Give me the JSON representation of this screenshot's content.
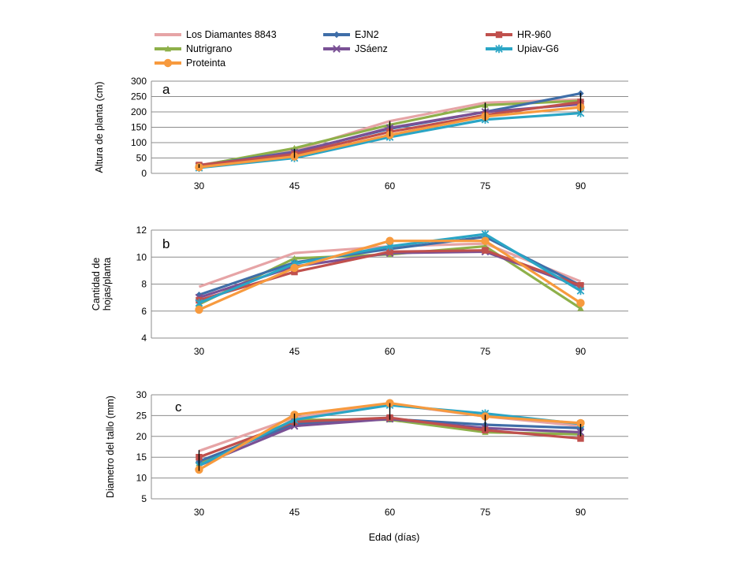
{
  "chart_data": {
    "type": "line",
    "xlabel": "Edad (días)",
    "categories": [
      "30",
      "45",
      "60",
      "75",
      "90"
    ],
    "legend": [
      {
        "name": "Los Diamantes 8843",
        "color": "#e6a4a6",
        "marker": "none"
      },
      {
        "name": "EJN2",
        "color": "#3f6ea8",
        "marker": "diamond"
      },
      {
        "name": "HR-960",
        "color": "#c0504d",
        "marker": "square"
      },
      {
        "name": "Nutrigrano",
        "color": "#8eb04a",
        "marker": "triangle"
      },
      {
        "name": "JSáenz",
        "color": "#7a5195",
        "marker": "x"
      },
      {
        "name": "Upiav-G6",
        "color": "#2aa5c5",
        "marker": "star"
      },
      {
        "name": "Proteinta",
        "color": "#f79a3e",
        "marker": "circle"
      }
    ],
    "panels": [
      {
        "tag": "a",
        "ylabel": "Altura de planta (cm)",
        "ylim": [
          0,
          300
        ],
        "yticks": [
          0,
          50,
          100,
          150,
          200,
          250,
          300
        ],
        "series": [
          {
            "name": "Los Diamantes 8843",
            "values": [
              27,
              75,
              170,
              230,
              240
            ]
          },
          {
            "name": "EJN2",
            "values": [
              25,
              70,
              145,
              200,
              260
            ]
          },
          {
            "name": "HR-960",
            "values": [
              27,
              62,
              135,
              190,
              232
            ]
          },
          {
            "name": "Nutrigrano",
            "values": [
              25,
              82,
              158,
              222,
              236
            ]
          },
          {
            "name": "JSáenz",
            "values": [
              24,
              68,
              148,
              200,
              225
            ]
          },
          {
            "name": "Upiav-G6",
            "values": [
              18,
              50,
              118,
              175,
              196
            ]
          },
          {
            "name": "Proteinta",
            "values": [
              20,
              55,
              125,
              185,
              215
            ]
          }
        ],
        "errors_at": [
          0,
          1,
          2,
          3,
          4
        ],
        "errors_center": [
          24,
          65,
          145,
          200,
          230
        ],
        "errors_half": [
          6,
          15,
          25,
          30,
          32
        ]
      },
      {
        "tag": "b",
        "ylabel_lines": [
          "Cantidad de",
          "hojas/planta"
        ],
        "ylim": [
          4,
          12
        ],
        "yticks": [
          4,
          6,
          8,
          10,
          12
        ],
        "series": [
          {
            "name": "Los Diamantes 8843",
            "values": [
              7.8,
              10.3,
              10.8,
              11.0,
              8.2
            ]
          },
          {
            "name": "EJN2",
            "values": [
              7.2,
              9.6,
              10.6,
              11.5,
              7.9
            ]
          },
          {
            "name": "HR-960",
            "values": [
              6.8,
              8.9,
              10.4,
              10.5,
              7.9
            ]
          },
          {
            "name": "Nutrigrano",
            "values": [
              6.5,
              9.9,
              10.2,
              10.8,
              6.2
            ]
          },
          {
            "name": "JSáenz",
            "values": [
              7.0,
              9.3,
              10.3,
              10.4,
              7.8
            ]
          },
          {
            "name": "Upiav-G6",
            "values": [
              6.6,
              9.5,
              10.8,
              11.7,
              7.5
            ]
          },
          {
            "name": "Proteinta",
            "values": [
              6.1,
              9.2,
              11.2,
              11.2,
              6.6
            ]
          }
        ]
      },
      {
        "tag": "c",
        "ylabel": "Diametro del tallo (mm)",
        "ylim": [
          5,
          30
        ],
        "yticks": [
          5,
          10,
          15,
          20,
          25,
          30
        ],
        "series": [
          {
            "name": "Los Diamantes 8843",
            "values": [
              16.5,
              24.5,
              27.8,
              24.8,
              22.5
            ]
          },
          {
            "name": "EJN2",
            "values": [
              14.0,
              23.0,
              24.2,
              22.8,
              22.0
            ]
          },
          {
            "name": "HR-960",
            "values": [
              15.0,
              23.5,
              24.5,
              21.5,
              19.5
            ]
          },
          {
            "name": "Nutrigrano",
            "values": [
              13.5,
              24.0,
              24.0,
              21.0,
              20.5
            ]
          },
          {
            "name": "JSáenz",
            "values": [
              13.0,
              22.5,
              24.2,
              22.0,
              21.0
            ]
          },
          {
            "name": "Upiav-G6",
            "values": [
              13.0,
              24.0,
              27.5,
              25.5,
              23.0
            ]
          },
          {
            "name": "Proteinta",
            "values": [
              12.0,
              25.2,
              28.0,
              24.8,
              23.2
            ]
          }
        ],
        "errors_at": [
          0,
          1,
          2,
          3,
          4
        ],
        "errors_center": [
          14.2,
          24.0,
          26.0,
          23.2,
          21.5
        ],
        "errors_half": [
          2.5,
          1.5,
          2.0,
          2.0,
          1.5
        ]
      }
    ]
  }
}
